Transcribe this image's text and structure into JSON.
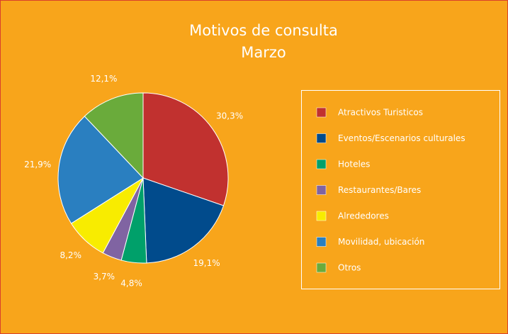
{
  "chart_data": {
    "type": "pie",
    "title": "Motivos de consulta",
    "subtitle": "Marzo",
    "categories": [
      "Atractivos Turisticos",
      "Eventos/Escenarios culturales",
      "Hoteles",
      "Restaurantes/Bares",
      "Alrededores",
      "Movilidad, ubicación",
      "Otros"
    ],
    "values": [
      30.3,
      19.1,
      4.8,
      3.7,
      8.2,
      21.9,
      12.1
    ],
    "value_labels": [
      "30,3%",
      "19,1%",
      "4,8%",
      "3,7%",
      "8,2%",
      "21,9%",
      "12,1%"
    ],
    "colors": [
      "#c1312f",
      "#014b8c",
      "#00a06a",
      "#8064a2",
      "#f8ec00",
      "#2a7fc0",
      "#6aab3b"
    ],
    "legend": "right"
  }
}
